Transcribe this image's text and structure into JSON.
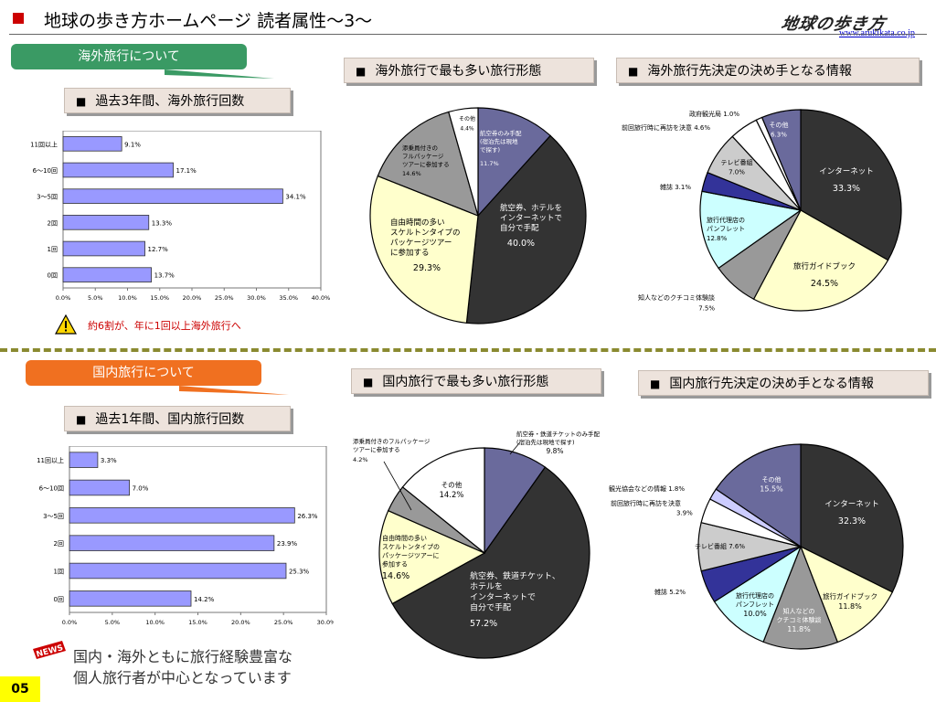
{
  "header": {
    "title": "地球の歩き方ホームページ 読者属性～3～",
    "logo_text": "地球の歩き方",
    "url": "www.arukikata.co.jp"
  },
  "sections": {
    "overseas_tab": "海外旅行について",
    "domestic_tab": "国内旅行について"
  },
  "box_titles": {
    "overseas_frequency": "過去3年間、海外旅行回数",
    "overseas_form": "海外旅行で最も多い旅行形態",
    "overseas_decision": "海外旅行先決定の決め手となる情報",
    "domestic_frequency": "過去1年間、国内旅行回数",
    "domestic_form": "国内旅行で最も多い旅行形態",
    "domestic_decision": "国内旅行先決定の決め手となる情報"
  },
  "warning_note": "約6割が、年に1回以上海外旅行へ",
  "closing_lines": [
    "国内・海外ともに旅行経験豊富な",
    "個人旅行者が中心となっています"
  ],
  "page_number": "05",
  "colors": {
    "bar_fill": "#9999ff",
    "tab_green": "#3a9a64",
    "tab_orange": "#f07020",
    "pie_dark": "#333333",
    "pie_purple": "#6a6a9c",
    "pie_yellow": "#ffffcc",
    "pie_gray": "#999999",
    "pie_light_gray": "#cccccc",
    "pie_white": "#ffffff",
    "pie_cyan": "#ccffff",
    "pie_navy": "#333399",
    "pie_lavender": "#ccccff"
  },
  "chart_data": [
    {
      "id": "overseas-frequency",
      "type": "bar",
      "orientation": "horizontal",
      "categories": [
        "11回以上",
        "6～10回",
        "3～5回",
        "2回",
        "1回",
        "0回"
      ],
      "values": [
        9.1,
        17.1,
        34.1,
        13.3,
        12.7,
        13.7
      ],
      "value_labels": [
        "9.1%",
        "17.1%",
        "34.1%",
        "13.3%",
        "12.7%",
        "13.7%"
      ],
      "xlim": [
        0,
        40
      ],
      "ticks": [
        "0.0%",
        "5.0%",
        "10.0%",
        "15.0%",
        "20.0%",
        "25.0%",
        "30.0%",
        "35.0%",
        "40.0%"
      ],
      "grid": false
    },
    {
      "id": "domestic-frequency",
      "type": "bar",
      "orientation": "horizontal",
      "categories": [
        "11回以上",
        "6～10回",
        "3～5回",
        "2回",
        "1回",
        "0回"
      ],
      "values": [
        3.3,
        7.0,
        26.3,
        23.9,
        25.3,
        14.2
      ],
      "value_labels": [
        "3.3%",
        "7.0%",
        "26.3%",
        "23.9%",
        "25.3%",
        "14.2%"
      ],
      "xlim": [
        0,
        30
      ],
      "ticks": [
        "0.0%",
        "5.0%",
        "10.0%",
        "15.0%",
        "20.0%",
        "25.0%",
        "30.0%"
      ],
      "grid": false
    },
    {
      "id": "overseas-form",
      "type": "pie",
      "slices": [
        {
          "value": 11.7,
          "color": "#6a6a9c",
          "label_lines": [
            "航空券のみ手配",
            "(宿泊先は現地",
            "で探す)"
          ],
          "value_label": "11.7%"
        },
        {
          "value": 40.0,
          "color": "#333333",
          "label_lines": [
            "航空券、ホテルを",
            "インターネットで",
            "自分で手配"
          ],
          "value_label": "40.0%"
        },
        {
          "value": 29.3,
          "color": "#ffffcc",
          "label_lines": [
            "自由時間の多い",
            "スケルトンタイプの",
            "パッケージツアー",
            "に参加する"
          ],
          "value_label": "29.3%"
        },
        {
          "value": 14.6,
          "color": "#999999",
          "label_lines": [
            "添乗員付きの",
            "フルパッケージ",
            "ツアーに参加する"
          ],
          "value_label": "14.6%"
        },
        {
          "value": 4.4,
          "color": "#ffffff",
          "label_lines": [
            "その他"
          ],
          "value_label": "4.4%"
        }
      ]
    },
    {
      "id": "overseas-decision",
      "type": "pie",
      "slices": [
        {
          "value": 33.3,
          "color": "#333333",
          "label_lines": [
            "インターネット"
          ],
          "value_label": "33.3%"
        },
        {
          "value": 24.5,
          "color": "#ffffcc",
          "label_lines": [
            "旅行ガイドブック"
          ],
          "value_label": "24.5%"
        },
        {
          "value": 7.5,
          "color": "#999999",
          "label_lines": [
            "知人などのクチコミ体験談"
          ],
          "value_label": "7.5%"
        },
        {
          "value": 12.8,
          "color": "#ccffff",
          "label_lines": [
            "旅行代理店の",
            "パンフレット"
          ],
          "value_label": "12.8%"
        },
        {
          "value": 3.1,
          "color": "#333399",
          "label_lines": [
            "雑誌"
          ],
          "value_label": "3.1%"
        },
        {
          "value": 7.0,
          "color": "#cccccc",
          "label_lines": [
            "テレビ番組"
          ],
          "value_label": "7.0%"
        },
        {
          "value": 4.6,
          "color": "#ffffff",
          "label_lines": [
            "前回旅行時に再訪を決意"
          ],
          "value_label": "4.6%"
        },
        {
          "value": 1.0,
          "color": "#ffffff",
          "label_lines": [
            "政府観光局"
          ],
          "value_label": "1.0%"
        },
        {
          "value": 6.3,
          "color": "#6a6a9c",
          "label_lines": [
            "その他"
          ],
          "value_label": "6.3%"
        }
      ]
    },
    {
      "id": "domestic-form",
      "type": "pie",
      "slices": [
        {
          "value": 9.8,
          "color": "#6a6a9c",
          "label_lines": [
            "航空券・鉄道チケットのみ手配",
            "(宿泊先は現地で探す)"
          ],
          "value_label": "9.8%"
        },
        {
          "value": 57.2,
          "color": "#333333",
          "label_lines": [
            "航空券、鉄道チケット、",
            "ホテルを",
            "インターネットで",
            "自分で手配"
          ],
          "value_label": "57.2%"
        },
        {
          "value": 14.6,
          "color": "#ffffcc",
          "label_lines": [
            "自由時間の多い",
            "スケルトンタイプの",
            "パッケージツアーに",
            "参加する"
          ],
          "value_label": "14.6%"
        },
        {
          "value": 4.2,
          "color": "#999999",
          "label_lines": [
            "添乗員付きのフルパッケージ",
            "ツアーに参加する"
          ],
          "value_label": "4.2%"
        },
        {
          "value": 14.2,
          "color": "#ffffff",
          "label_lines": [
            "その他"
          ],
          "value_label": "14.2%"
        }
      ]
    },
    {
      "id": "domestic-decision",
      "type": "pie",
      "slices": [
        {
          "value": 32.3,
          "color": "#333333",
          "label_lines": [
            "インターネット"
          ],
          "value_label": "32.3%"
        },
        {
          "value": 11.8,
          "color": "#ffffcc",
          "label_lines": [
            "旅行ガイドブック"
          ],
          "value_label": "11.8%"
        },
        {
          "value": 11.8,
          "color": "#999999",
          "label_lines": [
            "知人などの",
            "クチコミ体験談"
          ],
          "value_label": "11.8%"
        },
        {
          "value": 10.0,
          "color": "#ccffff",
          "label_lines": [
            "旅行代理店の",
            "パンフレット"
          ],
          "value_label": "10.0%"
        },
        {
          "value": 5.2,
          "color": "#333399",
          "label_lines": [
            "雑誌"
          ],
          "value_label": "5.2%"
        },
        {
          "value": 7.6,
          "color": "#cccccc",
          "label_lines": [
            "テレビ番組"
          ],
          "value_label": "7.6%"
        },
        {
          "value": 3.9,
          "color": "#ffffff",
          "label_lines": [
            "前回旅行時に再訪を決意"
          ],
          "value_label": "3.9%"
        },
        {
          "value": 1.8,
          "color": "#ccccff",
          "label_lines": [
            "観光協会などの情報"
          ],
          "value_label": "1.8%"
        },
        {
          "value": 15.5,
          "color": "#6a6a9c",
          "label_lines": [
            "その他"
          ],
          "value_label": "15.5%"
        }
      ]
    }
  ]
}
